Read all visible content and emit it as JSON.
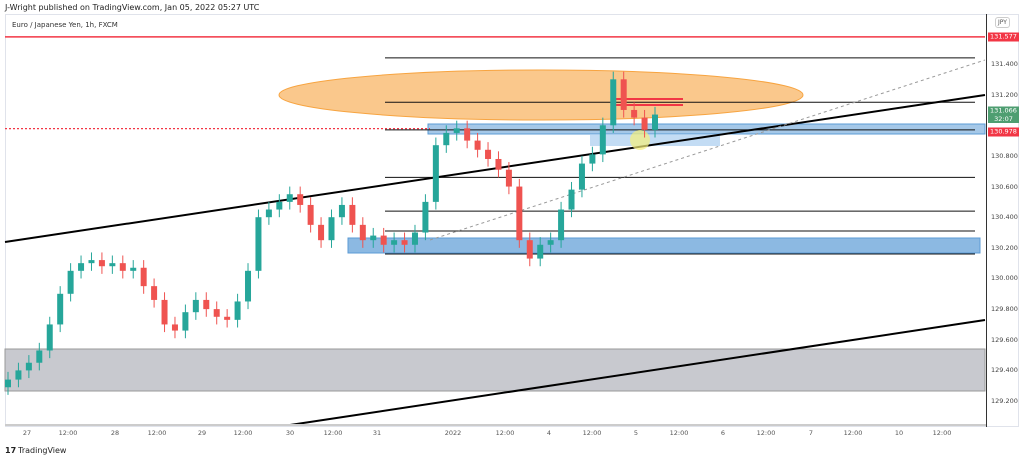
{
  "header": {
    "published": "J-Wright published on TradingView.com, Jan 05, 2022 05:27 UTC",
    "symbol": "Euro / Japanese Yen, 1h, FXCM"
  },
  "price_scale": {
    "currency": "JPY",
    "labels": [
      "131.400",
      "131.200",
      "130.800",
      "130.600",
      "130.400",
      "130.200",
      "130.000",
      "129.800",
      "129.600",
      "129.400",
      "129.200"
    ],
    "tags": {
      "resistance": "131.577",
      "last": "131.066",
      "countdown": "32:07",
      "level": "130.978"
    }
  },
  "time_axis": {
    "labels": [
      "27",
      "12:00",
      "28",
      "12:00",
      "29",
      "12:00",
      "30",
      "12:00",
      "31",
      "2022",
      "12:00",
      "4",
      "12:00",
      "5",
      "12:00",
      "6",
      "12:00",
      "7",
      "12:00",
      "10",
      "12:00"
    ]
  },
  "footer": {
    "brand": "TradingView"
  },
  "colors": {
    "up": "#26a69a",
    "down": "#ef5350",
    "red": "#f23645",
    "blue": "#5b9bd5",
    "orange": "#f7a440"
  },
  "chart_data": {
    "type": "candlestick",
    "interval": "1h",
    "ylim": [
      129.1,
      131.65
    ],
    "closes": [
      129.34,
      129.4,
      129.45,
      129.53,
      129.7,
      129.9,
      130.05,
      130.1,
      130.12,
      130.08,
      130.1,
      130.05,
      130.07,
      129.95,
      129.86,
      129.7,
      129.66,
      129.78,
      129.86,
      129.8,
      129.75,
      129.73,
      129.85,
      130.05,
      130.4,
      130.45,
      130.5,
      130.55,
      130.48,
      130.35,
      130.25,
      130.4,
      130.48,
      130.35,
      130.25,
      130.28,
      130.22,
      130.25,
      130.22,
      130.3,
      130.5,
      130.87,
      130.95,
      130.98,
      130.9,
      130.84,
      130.78,
      130.71,
      130.6,
      130.25,
      130.13,
      130.22,
      130.25,
      130.45,
      130.58,
      130.75,
      130.81,
      131.0,
      131.3,
      131.1,
      131.05,
      130.97,
      131.07
    ],
    "horizontal_levels": [
      131.44,
      131.15,
      130.97,
      130.66,
      130.44,
      130.31,
      130.16
    ],
    "resistance": 131.577,
    "dotted_level": 130.978
  }
}
